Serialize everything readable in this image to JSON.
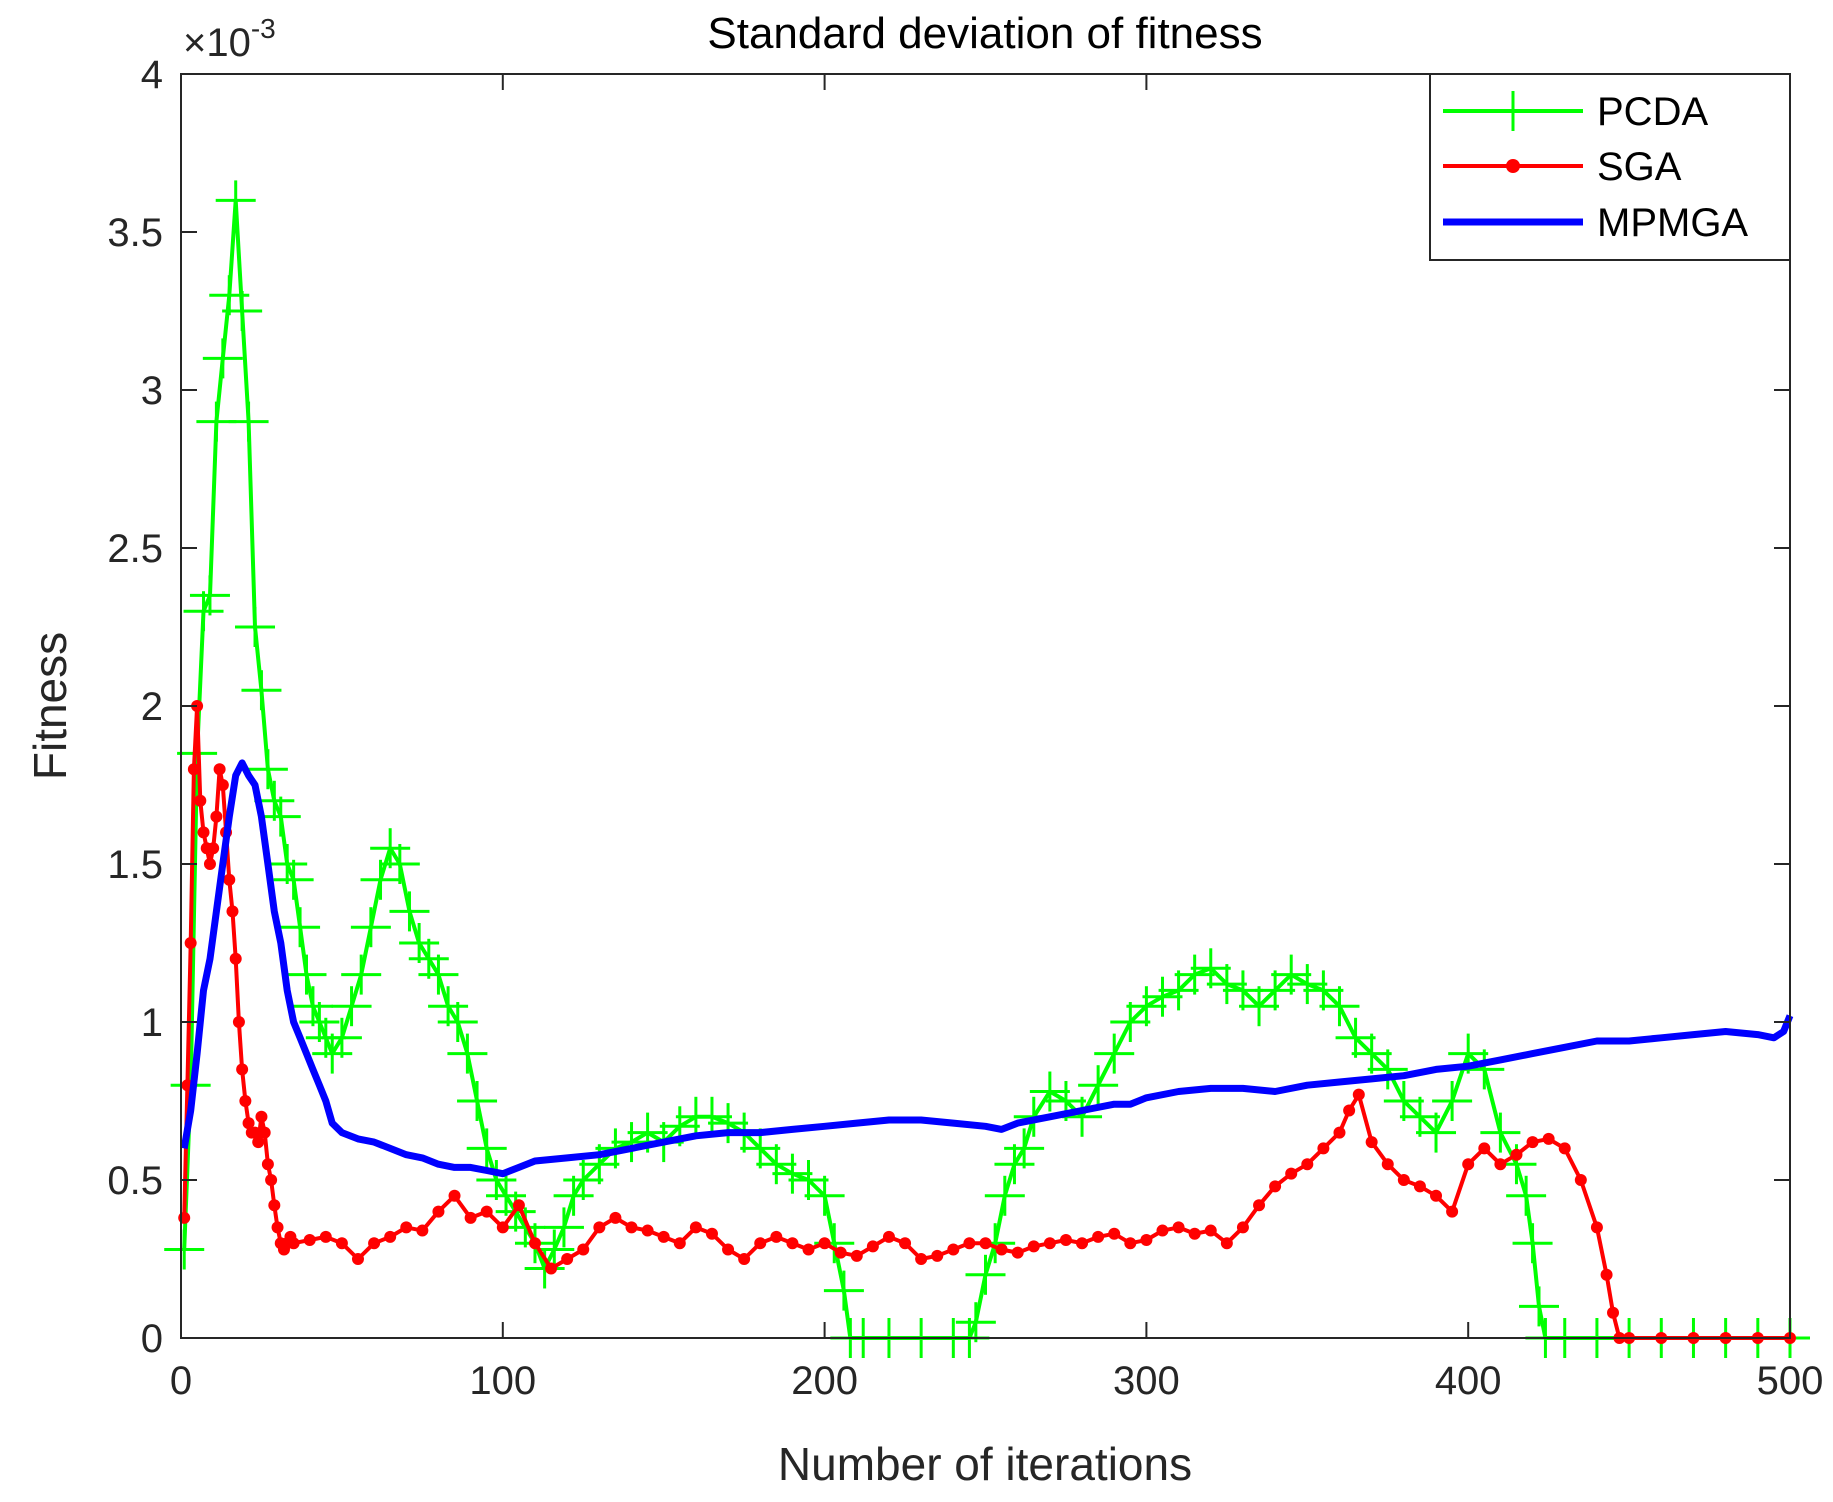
{
  "chart_data": {
    "type": "line",
    "title": "Standard deviation of fitness",
    "xlabel": "Number of iterations",
    "ylabel": "Fitness",
    "y_exponent_label": "×10",
    "y_exponent_power": "-3",
    "xlim": [
      0,
      500
    ],
    "ylim": [
      0,
      4
    ],
    "x_ticks": [
      0,
      100,
      200,
      300,
      400,
      500
    ],
    "x_tick_labels": [
      "0",
      "100",
      "200",
      "300",
      "400",
      "500"
    ],
    "y_ticks": [
      0,
      0.5,
      1,
      1.5,
      2,
      2.5,
      3,
      3.5,
      4
    ],
    "y_tick_labels": [
      "0",
      "0.5",
      "1",
      "1.5",
      "2",
      "2.5",
      "3",
      "3.5",
      "4"
    ],
    "grid": false,
    "legend_position": "top-right",
    "series": [
      {
        "name": "PCDA",
        "color": "#00ff00",
        "marker": "plus",
        "x": [
          1,
          3,
          5,
          7,
          9,
          11,
          13,
          15,
          17,
          19,
          21,
          23,
          25,
          27,
          29,
          31,
          33,
          35,
          37,
          39,
          41,
          43,
          45,
          47,
          50,
          53,
          56,
          59,
          62,
          65,
          68,
          71,
          74,
          77,
          80,
          83,
          86,
          89,
          92,
          95,
          98,
          101,
          104,
          107,
          110,
          113,
          116,
          119,
          122,
          125,
          130,
          135,
          140,
          145,
          150,
          155,
          160,
          165,
          170,
          175,
          180,
          185,
          190,
          195,
          200,
          203,
          206,
          208,
          212,
          220,
          230,
          240,
          245,
          247,
          250,
          253,
          256,
          259,
          262,
          265,
          270,
          275,
          280,
          285,
          290,
          295,
          300,
          305,
          310,
          315,
          320,
          325,
          330,
          335,
          340,
          345,
          350,
          355,
          360,
          365,
          370,
          375,
          380,
          385,
          390,
          395,
          400,
          405,
          410,
          415,
          418,
          420,
          422,
          424,
          430,
          440,
          450,
          460,
          470,
          480,
          490,
          500
        ],
        "y": [
          0.28,
          0.8,
          1.85,
          2.3,
          2.35,
          2.9,
          3.1,
          3.3,
          3.6,
          3.25,
          2.9,
          2.25,
          2.05,
          1.8,
          1.7,
          1.65,
          1.5,
          1.45,
          1.3,
          1.15,
          1.05,
          1.0,
          0.95,
          0.9,
          0.95,
          1.05,
          1.15,
          1.3,
          1.45,
          1.55,
          1.5,
          1.35,
          1.25,
          1.2,
          1.15,
          1.05,
          1.0,
          0.9,
          0.75,
          0.6,
          0.5,
          0.45,
          0.4,
          0.35,
          0.3,
          0.22,
          0.28,
          0.35,
          0.45,
          0.5,
          0.55,
          0.6,
          0.62,
          0.65,
          0.62,
          0.67,
          0.7,
          0.7,
          0.68,
          0.65,
          0.6,
          0.55,
          0.52,
          0.5,
          0.45,
          0.3,
          0.15,
          0.0,
          0.0,
          0.0,
          0.0,
          0.0,
          0.0,
          0.05,
          0.2,
          0.3,
          0.45,
          0.55,
          0.6,
          0.7,
          0.78,
          0.75,
          0.7,
          0.8,
          0.9,
          1.0,
          1.05,
          1.08,
          1.1,
          1.15,
          1.17,
          1.12,
          1.1,
          1.05,
          1.1,
          1.15,
          1.12,
          1.1,
          1.05,
          0.95,
          0.9,
          0.85,
          0.75,
          0.7,
          0.65,
          0.75,
          0.9,
          0.85,
          0.65,
          0.55,
          0.45,
          0.3,
          0.1,
          0.0,
          0.0,
          0.0,
          0.0,
          0.0,
          0.0,
          0.0,
          0.0,
          0.0
        ]
      },
      {
        "name": "SGA",
        "color": "#ff0000",
        "marker": "dot",
        "x": [
          1,
          2,
          3,
          4,
          5,
          6,
          7,
          8,
          9,
          10,
          11,
          12,
          13,
          14,
          15,
          16,
          17,
          18,
          19,
          20,
          21,
          22,
          23,
          24,
          25,
          26,
          27,
          28,
          29,
          30,
          31,
          32,
          33,
          34,
          35,
          40,
          45,
          50,
          55,
          60,
          65,
          70,
          75,
          80,
          85,
          90,
          95,
          100,
          105,
          110,
          115,
          120,
          125,
          130,
          135,
          140,
          145,
          150,
          155,
          160,
          165,
          170,
          175,
          180,
          185,
          190,
          195,
          200,
          205,
          210,
          215,
          220,
          225,
          230,
          235,
          240,
          245,
          250,
          255,
          260,
          265,
          270,
          275,
          280,
          285,
          290,
          295,
          300,
          305,
          310,
          315,
          320,
          325,
          330,
          335,
          340,
          345,
          350,
          355,
          360,
          363,
          366,
          370,
          375,
          380,
          385,
          390,
          395,
          400,
          405,
          410,
          415,
          420,
          425,
          430,
          435,
          440,
          443,
          445,
          447,
          450,
          460,
          470,
          480,
          490,
          500
        ],
        "y": [
          0.38,
          0.8,
          1.25,
          1.8,
          2.0,
          1.7,
          1.6,
          1.55,
          1.5,
          1.55,
          1.65,
          1.8,
          1.75,
          1.6,
          1.45,
          1.35,
          1.2,
          1.0,
          0.85,
          0.75,
          0.68,
          0.65,
          0.65,
          0.62,
          0.7,
          0.65,
          0.55,
          0.5,
          0.42,
          0.35,
          0.3,
          0.28,
          0.3,
          0.32,
          0.3,
          0.31,
          0.32,
          0.3,
          0.25,
          0.3,
          0.32,
          0.35,
          0.34,
          0.4,
          0.45,
          0.38,
          0.4,
          0.35,
          0.42,
          0.3,
          0.22,
          0.25,
          0.28,
          0.35,
          0.38,
          0.35,
          0.34,
          0.32,
          0.3,
          0.35,
          0.33,
          0.28,
          0.25,
          0.3,
          0.32,
          0.3,
          0.28,
          0.3,
          0.27,
          0.26,
          0.29,
          0.32,
          0.3,
          0.25,
          0.26,
          0.28,
          0.3,
          0.3,
          0.28,
          0.27,
          0.29,
          0.3,
          0.31,
          0.3,
          0.32,
          0.33,
          0.3,
          0.31,
          0.34,
          0.35,
          0.33,
          0.34,
          0.3,
          0.35,
          0.42,
          0.48,
          0.52,
          0.55,
          0.6,
          0.65,
          0.72,
          0.77,
          0.62,
          0.55,
          0.5,
          0.48,
          0.45,
          0.4,
          0.55,
          0.6,
          0.55,
          0.58,
          0.62,
          0.63,
          0.6,
          0.5,
          0.35,
          0.2,
          0.08,
          0.0,
          0.0,
          0.0,
          0.0,
          0.0,
          0.0,
          0.0
        ]
      },
      {
        "name": "MPMGA",
        "color": "#0000ff",
        "marker": "none",
        "x": [
          1,
          3,
          5,
          7,
          9,
          11,
          13,
          15,
          17,
          19,
          21,
          23,
          25,
          27,
          29,
          31,
          33,
          35,
          37,
          39,
          41,
          43,
          45,
          47,
          50,
          55,
          60,
          65,
          70,
          75,
          80,
          85,
          90,
          95,
          100,
          105,
          110,
          120,
          130,
          140,
          150,
          160,
          170,
          180,
          190,
          200,
          210,
          220,
          230,
          240,
          250,
          255,
          260,
          270,
          280,
          290,
          295,
          300,
          310,
          320,
          330,
          340,
          350,
          360,
          370,
          380,
          390,
          400,
          410,
          420,
          430,
          440,
          450,
          460,
          470,
          480,
          490,
          495,
          498,
          500
        ],
        "y": [
          0.6,
          0.72,
          0.9,
          1.1,
          1.2,
          1.35,
          1.5,
          1.65,
          1.78,
          1.82,
          1.78,
          1.75,
          1.65,
          1.5,
          1.35,
          1.25,
          1.1,
          1.0,
          0.95,
          0.9,
          0.85,
          0.8,
          0.75,
          0.68,
          0.65,
          0.63,
          0.62,
          0.6,
          0.58,
          0.57,
          0.55,
          0.54,
          0.54,
          0.53,
          0.52,
          0.54,
          0.56,
          0.57,
          0.58,
          0.6,
          0.62,
          0.64,
          0.65,
          0.65,
          0.66,
          0.67,
          0.68,
          0.69,
          0.69,
          0.68,
          0.67,
          0.66,
          0.68,
          0.7,
          0.72,
          0.74,
          0.74,
          0.76,
          0.78,
          0.79,
          0.79,
          0.78,
          0.8,
          0.81,
          0.82,
          0.83,
          0.85,
          0.86,
          0.88,
          0.9,
          0.92,
          0.94,
          0.94,
          0.95,
          0.96,
          0.97,
          0.96,
          0.95,
          0.97,
          1.02
        ]
      }
    ]
  }
}
